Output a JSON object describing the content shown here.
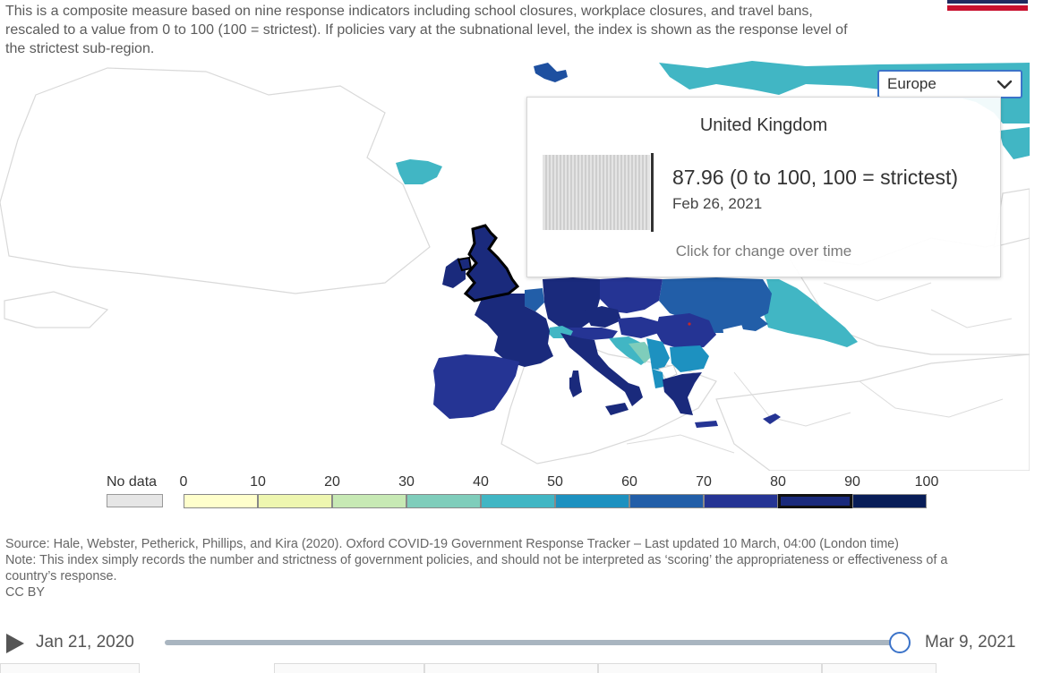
{
  "subtitle": "This is a composite measure based on nine response indicators including school closures, workplace closures, and travel bans, rescaled to a value from 0 to 100 (100 = strictest). If policies vary at the subnational level, the index is shown as the response level of the strictest sub-region.",
  "region_select": {
    "value": "Europe"
  },
  "tooltip": {
    "country": "United Kingdom",
    "value_text": "87.96 (0 to 100, 100 = strictest)",
    "date": "Feb 26, 2021",
    "hint": "Click for change over time"
  },
  "legend": {
    "no_data_label": "No data",
    "ticks": [
      "0",
      "10",
      "20",
      "30",
      "40",
      "50",
      "60",
      "70",
      "80",
      "90",
      "100"
    ],
    "colors": [
      "#ffffcc",
      "#eef6b0",
      "#c7e9b4",
      "#7fcdbb",
      "#41b6c4",
      "#1d91c0",
      "#225ea8",
      "#253494",
      "#1a2a7c",
      "#081d58"
    ],
    "active_bin": 8,
    "no_data_color": "#e6e6e6"
  },
  "sources": {
    "source": "Source: Hale, Webster, Petherick, Phillips, and Kira (2020). Oxford COVID-19 Government Response Tracker – Last updated 10 March, 04:00 (London time)",
    "note": "Note: This index simply records the number and strictness of government policies, and should not be interpreted as ‘scoring’ the appropriateness or effectiveness of a country’s response.",
    "license": "CC BY"
  },
  "timeline": {
    "start": "Jan 21, 2020",
    "end": "Mar 9, 2021",
    "position": 1.0
  },
  "icons": {
    "play": "play-icon",
    "chevron": "chevron-down-icon"
  }
}
